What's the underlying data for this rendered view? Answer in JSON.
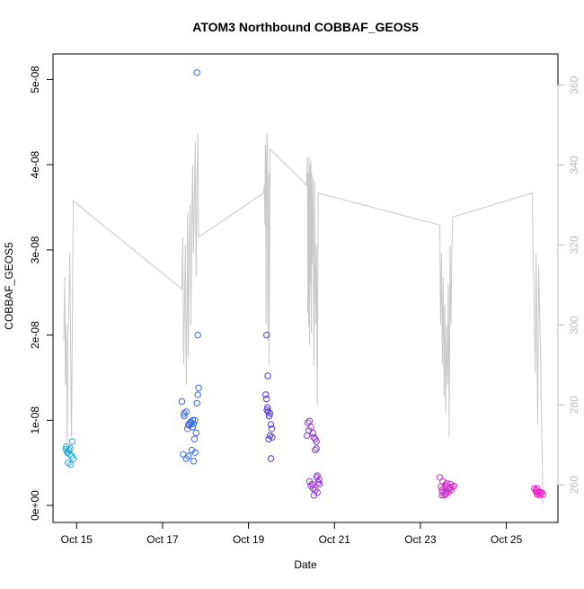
{
  "chart_data": {
    "type": "scatter",
    "title": "ATOM3 Northbound COBBAF_GEOS5",
    "xlabel": "Date",
    "ylabel": "COBBAF_GEOS5",
    "grid": false,
    "legend": "none",
    "x_axis": {
      "min": 14.45,
      "max": 26.2,
      "ticks": [
        {
          "value": 15,
          "label": "Oct 15"
        },
        {
          "value": 17,
          "label": "Oct 17"
        },
        {
          "value": 19,
          "label": "Oct 19"
        },
        {
          "value": 21,
          "label": "Oct 21"
        },
        {
          "value": 23,
          "label": "Oct 23"
        },
        {
          "value": 25,
          "label": "Oct 25"
        }
      ]
    },
    "y_axis": {
      "min": -2e-09,
      "max": 5.3e-08,
      "ticks": [
        {
          "value": 0,
          "label": "0e+00"
        },
        {
          "value": 1e-08,
          "label": "1e-08"
        },
        {
          "value": 2e-08,
          "label": "2e-08"
        },
        {
          "value": 3e-08,
          "label": "3e-08"
        },
        {
          "value": 4e-08,
          "label": "4e-08"
        },
        {
          "value": 5e-08,
          "label": "5e-08"
        }
      ]
    },
    "y2_axis": {
      "min": 250.6,
      "max": 367.8,
      "color": "#bdbdbd",
      "ticks": [
        {
          "value": 260,
          "label": "260"
        },
        {
          "value": 280,
          "label": "280"
        },
        {
          "value": 300,
          "label": "300"
        },
        {
          "value": 320,
          "label": "320"
        },
        {
          "value": 340,
          "label": "340"
        },
        {
          "value": 360,
          "label": "360"
        }
      ]
    },
    "scatter_series": [
      {
        "color": "#22aadd",
        "points": [
          [
            14.75,
            6.6e-09
          ],
          [
            14.78,
            6.2e-09
          ],
          [
            14.8,
            5e-09
          ],
          [
            14.82,
            6.5e-09
          ],
          [
            14.84,
            6e-09
          ],
          [
            14.86,
            4.8e-09
          ],
          [
            14.88,
            5.8e-09
          ],
          [
            14.9,
            7.5e-09
          ],
          [
            14.76,
            6.9e-09
          ],
          [
            14.8,
            6.2e-09
          ],
          [
            14.85,
            6.7e-09
          ],
          [
            14.92,
            5.5e-09
          ]
        ]
      },
      {
        "color": "#3366ee",
        "points": [
          [
            17.8,
            5.08e-08
          ],
          [
            17.82,
            2e-08
          ],
          [
            17.45,
            1.22e-08
          ],
          [
            17.5,
            1.08e-08
          ],
          [
            17.55,
            1.1e-08
          ],
          [
            17.6,
            9.5e-09
          ],
          [
            17.65,
            9.8e-09
          ],
          [
            17.7,
            9.2e-09
          ],
          [
            17.72,
            9.6e-09
          ],
          [
            17.75,
            1e-08
          ],
          [
            17.78,
            8.5e-09
          ],
          [
            17.8,
            1.2e-08
          ],
          [
            17.82,
            1.3e-08
          ],
          [
            17.84,
            1.38e-08
          ],
          [
            17.48,
            6e-09
          ],
          [
            17.55,
            5.5e-09
          ],
          [
            17.6,
            5.8e-09
          ],
          [
            17.68,
            6.5e-09
          ],
          [
            17.72,
            5.2e-09
          ],
          [
            17.74,
            7.8e-09
          ],
          [
            17.5,
            1.05e-08
          ],
          [
            17.58,
            9e-09
          ],
          [
            17.62,
            9.4e-09
          ],
          [
            17.66,
            9.7e-09
          ],
          [
            17.7,
            1e-08
          ],
          [
            17.76,
            6.2e-09
          ]
        ]
      },
      {
        "color": "#5533ee",
        "points": [
          [
            19.42,
            2e-08
          ],
          [
            19.45,
            1.52e-08
          ],
          [
            19.4,
            1.3e-08
          ],
          [
            19.42,
            1.25e-08
          ],
          [
            19.44,
            1.15e-08
          ],
          [
            19.46,
            1.1e-08
          ],
          [
            19.48,
            1.05e-08
          ],
          [
            19.5,
            1.08e-08
          ],
          [
            19.52,
            9.5e-09
          ],
          [
            19.54,
            9e-09
          ],
          [
            19.5,
            8.2e-09
          ],
          [
            19.47,
            7.8e-09
          ],
          [
            19.55,
            8e-09
          ],
          [
            19.52,
            5.5e-09
          ],
          [
            19.43,
            1.12e-08
          ]
        ]
      },
      {
        "color": "#9933dd",
        "points": [
          [
            20.38,
            9.7e-09
          ],
          [
            20.42,
            9.9e-09
          ],
          [
            20.45,
            9.2e-09
          ],
          [
            20.4,
            8.8e-09
          ],
          [
            20.36,
            8.2e-09
          ],
          [
            20.5,
            8.5e-09
          ],
          [
            20.55,
            7.8e-09
          ],
          [
            20.58,
            7.5e-09
          ],
          [
            20.52,
            8e-09
          ],
          [
            20.55,
            6.5e-09
          ],
          [
            20.58,
            6.7e-09
          ],
          [
            20.42,
            2.8e-09
          ],
          [
            20.45,
            2.3e-09
          ],
          [
            20.48,
            2.5e-09
          ],
          [
            20.5,
            2e-09
          ],
          [
            20.55,
            1.8e-09
          ],
          [
            20.6,
            1.5e-09
          ],
          [
            20.62,
            2.7e-09
          ],
          [
            20.64,
            3e-09
          ],
          [
            20.6,
            3.5e-09
          ],
          [
            20.65,
            2.5e-09
          ],
          [
            20.58,
            3.3e-09
          ],
          [
            20.52,
            1.2e-09
          ]
        ]
      },
      {
        "color": "#cc33cc",
        "points": [
          [
            23.45,
            3.3e-09
          ],
          [
            23.48,
            2.2e-09
          ],
          [
            23.5,
            1.8e-09
          ],
          [
            23.52,
            1.5e-09
          ],
          [
            23.55,
            2e-09
          ],
          [
            23.58,
            1.3e-09
          ],
          [
            23.6,
            1.7e-09
          ],
          [
            23.62,
            2.2e-09
          ],
          [
            23.65,
            1.5e-09
          ],
          [
            23.68,
            2e-09
          ],
          [
            23.7,
            2.5e-09
          ],
          [
            23.72,
            1.8e-09
          ],
          [
            23.75,
            2.2e-09
          ],
          [
            23.78,
            2.3e-09
          ],
          [
            23.5,
            1.2e-09
          ],
          [
            23.55,
            1.2e-09
          ],
          [
            23.6,
            1.4e-09
          ],
          [
            23.65,
            1.9e-09
          ],
          [
            23.7,
            2.1e-09
          ],
          [
            23.62,
            2.6e-09
          ],
          [
            23.58,
            2.4e-09
          ],
          [
            23.52,
            2.8e-09
          ]
        ]
      },
      {
        "color": "#ee22cc",
        "points": [
          [
            25.65,
            2e-09
          ],
          [
            25.68,
            1.8e-09
          ],
          [
            25.7,
            1.5e-09
          ],
          [
            25.72,
            1.3e-09
          ],
          [
            25.75,
            1.5e-09
          ],
          [
            25.78,
            1.2e-09
          ],
          [
            25.8,
            1.4e-09
          ],
          [
            25.82,
            1.5e-09
          ],
          [
            25.85,
            1.3e-09
          ],
          [
            25.7,
            1.7e-09
          ],
          [
            25.76,
            1.6e-09
          ],
          [
            25.72,
            2e-09
          ]
        ]
      }
    ],
    "line_series": {
      "color": "#c8c8c8",
      "axis": "y2",
      "points": [
        [
          14.7,
          296
        ],
        [
          14.72,
          312
        ],
        [
          14.74,
          285
        ],
        [
          14.76,
          300
        ],
        [
          14.78,
          270
        ],
        [
          14.8,
          298
        ],
        [
          14.82,
          305
        ],
        [
          14.84,
          318
        ],
        [
          14.86,
          295
        ],
        [
          14.88,
          272
        ],
        [
          14.9,
          300
        ],
        [
          14.92,
          331
        ],
        [
          17.45,
          309
        ],
        [
          17.47,
          322
        ],
        [
          17.49,
          290
        ],
        [
          17.51,
          305
        ],
        [
          17.53,
          320
        ],
        [
          17.55,
          285
        ],
        [
          17.57,
          305
        ],
        [
          17.58,
          328
        ],
        [
          17.6,
          292
        ],
        [
          17.62,
          320
        ],
        [
          17.64,
          330
        ],
        [
          17.66,
          300
        ],
        [
          17.68,
          325
        ],
        [
          17.7,
          340
        ],
        [
          17.72,
          318
        ],
        [
          17.74,
          332
        ],
        [
          17.76,
          346
        ],
        [
          17.78,
          312
        ],
        [
          17.8,
          334
        ],
        [
          17.82,
          348
        ],
        [
          17.84,
          322
        ],
        [
          19.35,
          333
        ],
        [
          19.37,
          335
        ],
        [
          19.38,
          325
        ],
        [
          19.39,
          345
        ],
        [
          19.4,
          340
        ],
        [
          19.41,
          300
        ],
        [
          19.42,
          339
        ],
        [
          19.43,
          348
        ],
        [
          19.44,
          344
        ],
        [
          19.45,
          296
        ],
        [
          19.46,
          330
        ],
        [
          19.47,
          338
        ],
        [
          19.48,
          290
        ],
        [
          19.5,
          344
        ],
        [
          20.35,
          335
        ],
        [
          20.37,
          342
        ],
        [
          20.38,
          303
        ],
        [
          20.39,
          338
        ],
        [
          20.4,
          300
        ],
        [
          20.41,
          342
        ],
        [
          20.42,
          295
        ],
        [
          20.43,
          340
        ],
        [
          20.44,
          310
        ],
        [
          20.45,
          341
        ],
        [
          20.46,
          298
        ],
        [
          20.47,
          338
        ],
        [
          20.48,
          315
        ],
        [
          20.5,
          337
        ],
        [
          20.52,
          290
        ],
        [
          20.54,
          336
        ],
        [
          20.56,
          300
        ],
        [
          20.58,
          320
        ],
        [
          20.6,
          280
        ],
        [
          20.62,
          333
        ],
        [
          23.45,
          325
        ],
        [
          23.47,
          300
        ],
        [
          23.49,
          318
        ],
        [
          23.51,
          290
        ],
        [
          23.53,
          312
        ],
        [
          23.55,
          282
        ],
        [
          23.57,
          305
        ],
        [
          23.59,
          278
        ],
        [
          23.61,
          300
        ],
        [
          23.63,
          285
        ],
        [
          23.65,
          310
        ],
        [
          23.67,
          272
        ],
        [
          23.69,
          320
        ],
        [
          23.71,
          300
        ],
        [
          23.73,
          318
        ],
        [
          23.75,
          327
        ],
        [
          25.6,
          333
        ],
        [
          25.62,
          320
        ],
        [
          25.65,
          302
        ],
        [
          25.67,
          288
        ],
        [
          25.69,
          318
        ],
        [
          25.71,
          298
        ],
        [
          25.73,
          275
        ],
        [
          25.75,
          315
        ],
        [
          25.77,
          305
        ],
        [
          25.79,
          296
        ],
        [
          25.81,
          282
        ],
        [
          25.83,
          270
        ],
        [
          25.85,
          255
        ]
      ]
    }
  }
}
